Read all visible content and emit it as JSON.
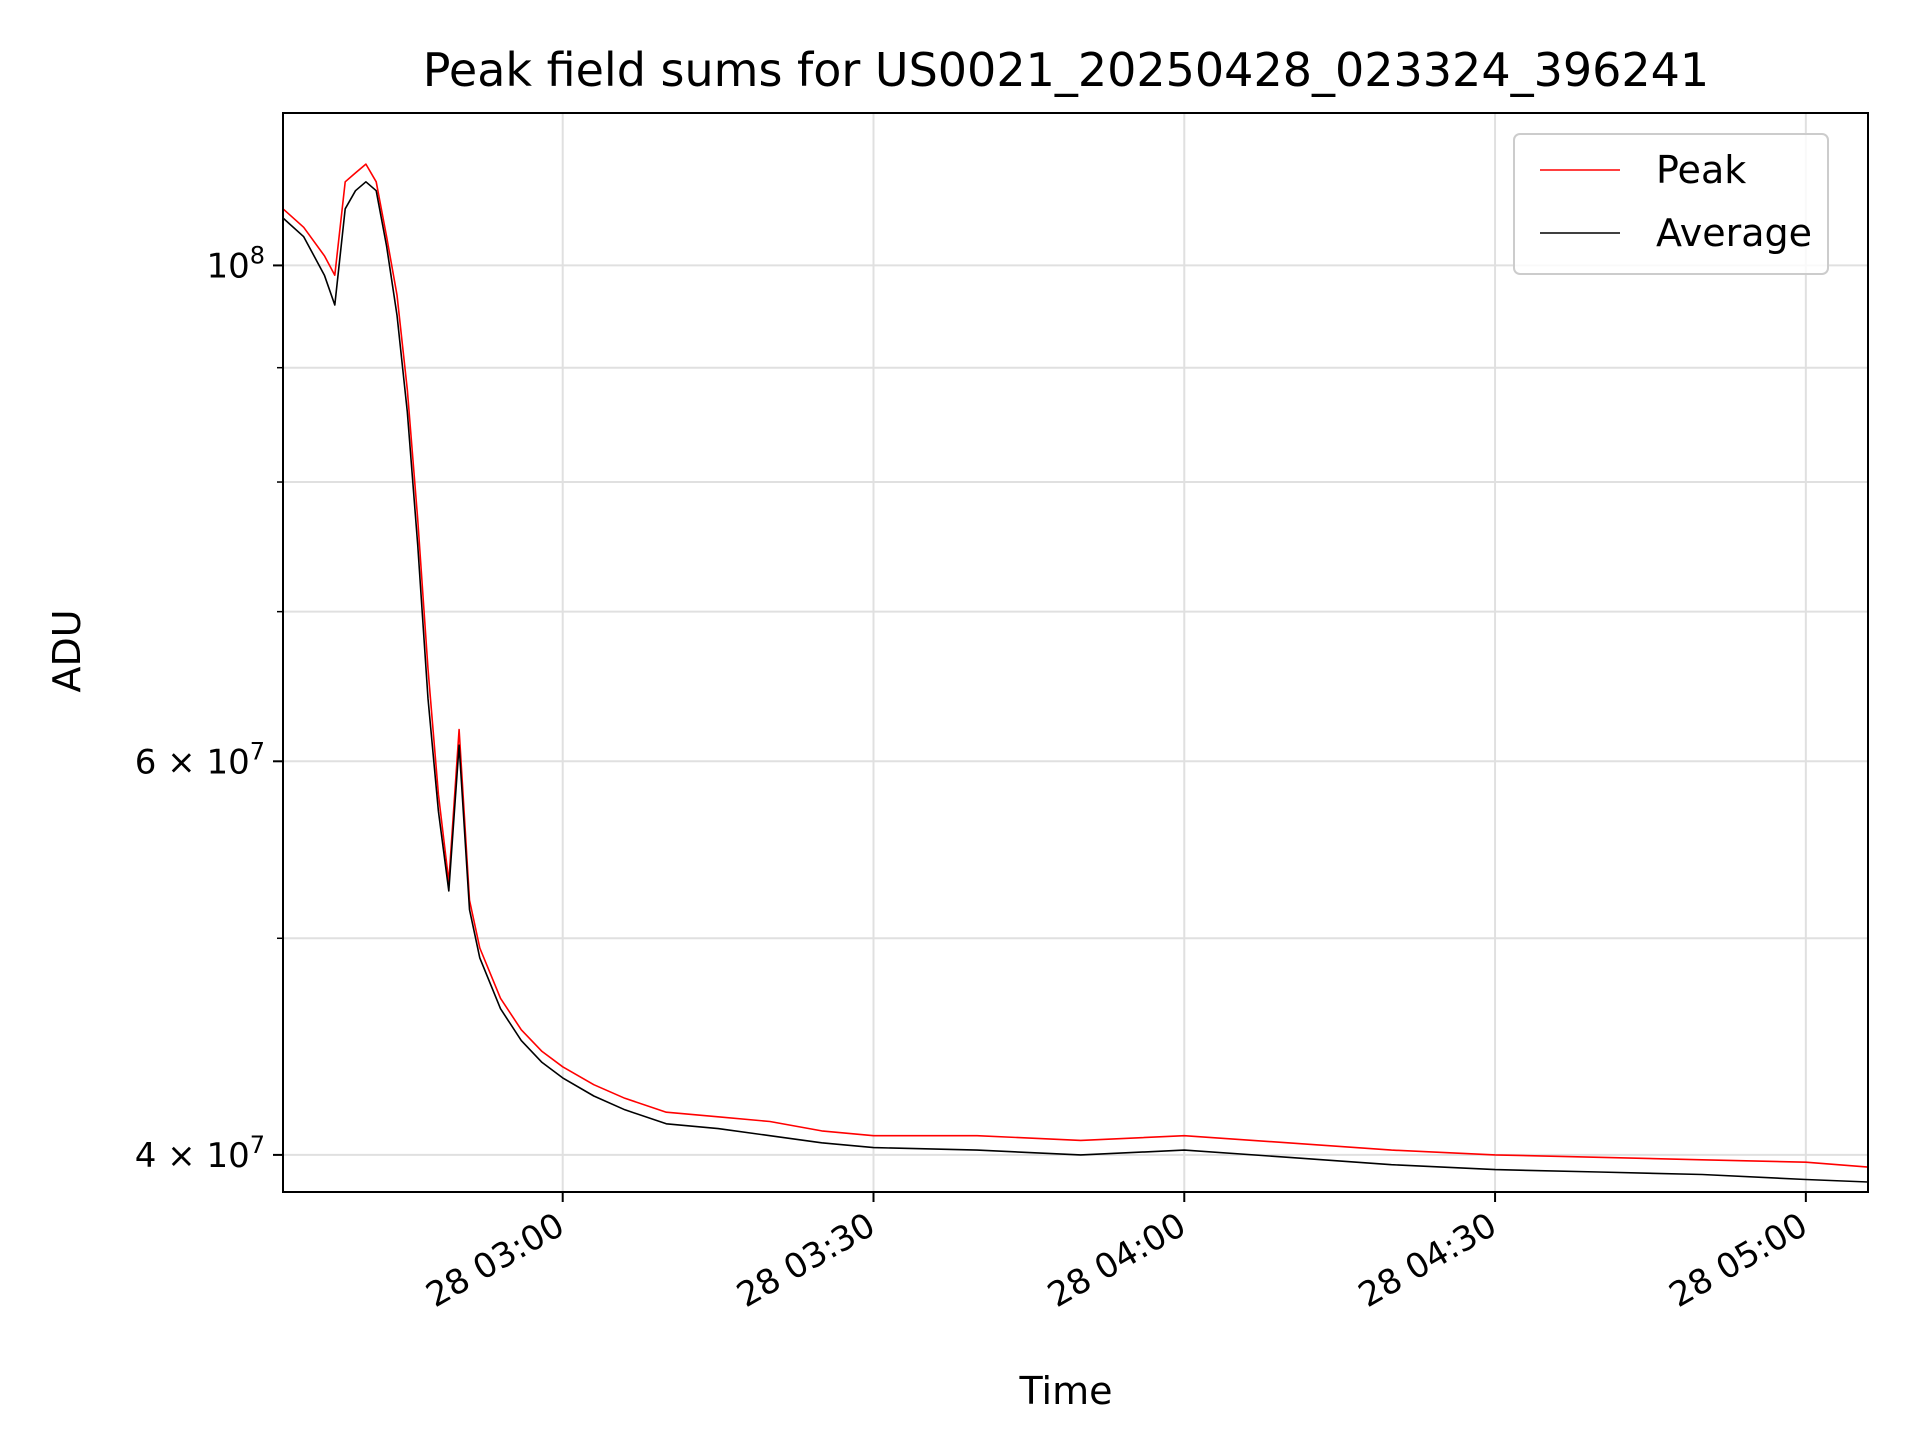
{
  "chart_data": {
    "type": "line",
    "title": "Peak field sums for US0021_20250428_023324_396241",
    "xlabel": "Time",
    "ylabel": "ADU",
    "x_tick_labels": [
      "28 03:00",
      "28 03:30",
      "28 04:00",
      "28 04:30",
      "28 05:00"
    ],
    "x_ticks": [
      "2025-04-28 03:00",
      "2025-04-28 03:30",
      "2025-04-28 04:00",
      "2025-04-28 04:30",
      "2025-04-28 05:00"
    ],
    "xlim": [
      "2025-04-28 02:33",
      "2025-04-28 05:06"
    ],
    "y_scale": "log",
    "ylim": [
      38500000,
      117000000
    ],
    "y_ticks_major": [
      40000000,
      60000000,
      100000000
    ],
    "y_tick_labels": [
      "4 × 10^7",
      "6 × 10^7",
      "10^8"
    ],
    "y_ticks_minor": [
      50000000,
      70000000,
      80000000,
      90000000
    ],
    "grid": true,
    "legend_position": "top-right",
    "x": [
      "2025-04-28 02:33",
      "2025-04-28 02:35",
      "2025-04-28 02:37",
      "2025-04-28 02:38",
      "2025-04-28 02:39",
      "2025-04-28 02:40",
      "2025-04-28 02:41",
      "2025-04-28 02:42",
      "2025-04-28 02:43",
      "2025-04-28 02:44",
      "2025-04-28 02:45",
      "2025-04-28 02:46",
      "2025-04-28 02:47",
      "2025-04-28 02:48",
      "2025-04-28 02:49",
      "2025-04-28 02:50",
      "2025-04-28 02:51",
      "2025-04-28 02:52",
      "2025-04-28 02:54",
      "2025-04-28 02:56",
      "2025-04-28 02:58",
      "2025-04-28 03:00",
      "2025-04-28 03:03",
      "2025-04-28 03:06",
      "2025-04-28 03:10",
      "2025-04-28 03:15",
      "2025-04-28 03:20",
      "2025-04-28 03:25",
      "2025-04-28 03:30",
      "2025-04-28 03:40",
      "2025-04-28 03:50",
      "2025-04-28 04:00",
      "2025-04-28 04:10",
      "2025-04-28 04:20",
      "2025-04-28 04:30",
      "2025-04-28 04:40",
      "2025-04-28 04:50",
      "2025-04-28 05:00",
      "2025-04-28 05:06"
    ],
    "series": [
      {
        "name": "Peak",
        "color": "#ff0000",
        "values": [
          106000000,
          104000000,
          101000000,
          99000000,
          109000000,
          110000000,
          111000000,
          109000000,
          103000000,
          97000000,
          88000000,
          77000000,
          66000000,
          58000000,
          53000000,
          62000000,
          52000000,
          49500000,
          47000000,
          45500000,
          44500000,
          43800000,
          43000000,
          42400000,
          41800000,
          41600000,
          41400000,
          41000000,
          40800000,
          40800000,
          40600000,
          40800000,
          40500000,
          40200000,
          40000000,
          39900000,
          39800000,
          39700000,
          39500000
        ]
      },
      {
        "name": "Average",
        "color": "#000000",
        "values": [
          105000000,
          103000000,
          99000000,
          96000000,
          106000000,
          108000000,
          109000000,
          108000000,
          102000000,
          95000000,
          86000000,
          75000000,
          64000000,
          57000000,
          52500000,
          61000000,
          51500000,
          49000000,
          46500000,
          45000000,
          44000000,
          43300000,
          42500000,
          41900000,
          41300000,
          41100000,
          40800000,
          40500000,
          40300000,
          40200000,
          40000000,
          40200000,
          39900000,
          39600000,
          39400000,
          39300000,
          39200000,
          39000000,
          38900000
        ]
      }
    ]
  }
}
